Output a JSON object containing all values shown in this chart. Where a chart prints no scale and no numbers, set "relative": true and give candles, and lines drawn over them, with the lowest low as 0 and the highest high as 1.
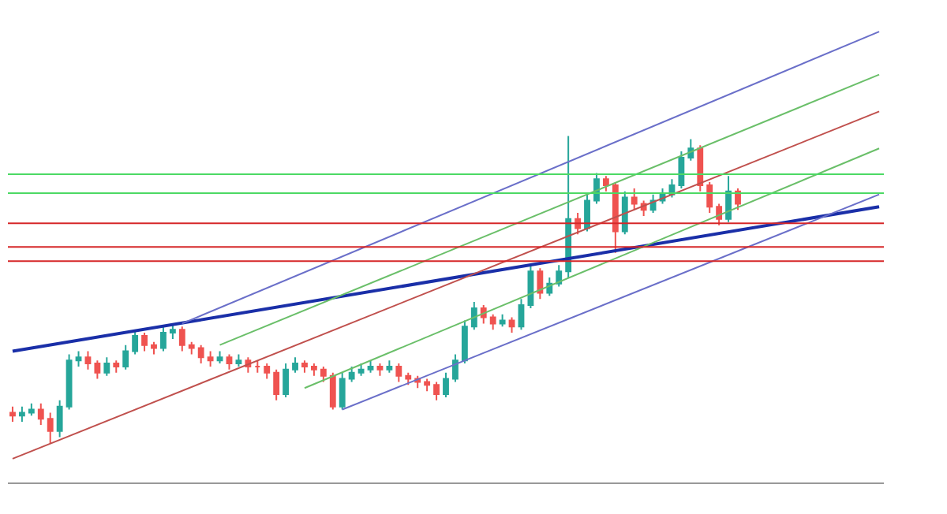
{
  "chart_data": {
    "type": "candlestick",
    "relative": true,
    "grid": false,
    "categories": [
      null,
      null,
      null,
      null,
      null,
      null,
      null,
      null,
      null,
      null,
      null,
      null,
      null,
      null,
      null,
      null,
      null,
      null,
      null,
      null,
      null,
      null,
      null,
      null,
      null,
      null,
      null,
      null,
      null,
      null,
      null,
      null,
      null,
      null,
      null,
      null,
      null,
      null,
      null,
      null,
      null,
      null,
      null,
      null,
      null,
      null,
      null,
      null,
      null,
      null,
      null,
      null,
      null,
      null,
      null,
      null,
      null,
      null,
      null,
      null,
      null,
      null,
      null,
      null,
      null,
      null,
      null,
      null,
      null,
      null,
      null,
      null,
      null,
      null,
      null,
      null,
      null,
      null,
      null,
      null,
      null,
      null,
      null,
      null,
      null,
      null,
      null,
      null,
      null,
      null,
      null,
      null,
      null
    ],
    "ohlc": [
      [
        0.1,
        0.12,
        0.07,
        0.09
      ],
      [
        0.09,
        0.12,
        0.07,
        0.1
      ],
      [
        0.1,
        0.13,
        0.09,
        0.11
      ],
      [
        0.11,
        0.13,
        0.06,
        0.08
      ],
      [
        0.08,
        0.1,
        0.0,
        0.04
      ],
      [
        0.04,
        0.14,
        0.02,
        0.12
      ],
      [
        0.12,
        0.29,
        0.11,
        0.27
      ],
      [
        0.27,
        0.3,
        0.25,
        0.28
      ],
      [
        0.28,
        0.3,
        0.24,
        0.26
      ],
      [
        0.26,
        0.27,
        0.21,
        0.23
      ],
      [
        0.23,
        0.28,
        0.22,
        0.26
      ],
      [
        0.26,
        0.27,
        0.23,
        0.25
      ],
      [
        0.25,
        0.32,
        0.24,
        0.3
      ],
      [
        0.3,
        0.37,
        0.29,
        0.35
      ],
      [
        0.35,
        0.36,
        0.3,
        0.32
      ],
      [
        0.32,
        0.33,
        0.29,
        0.31
      ],
      [
        0.31,
        0.38,
        0.3,
        0.36
      ],
      [
        0.36,
        0.39,
        0.34,
        0.37
      ],
      [
        0.37,
        0.38,
        0.3,
        0.32
      ],
      [
        0.32,
        0.33,
        0.29,
        0.31
      ],
      [
        0.31,
        0.32,
        0.26,
        0.28
      ],
      [
        0.28,
        0.3,
        0.25,
        0.27
      ],
      [
        0.27,
        0.3,
        0.26,
        0.28
      ],
      [
        0.28,
        0.29,
        0.24,
        0.26
      ],
      [
        0.26,
        0.29,
        0.25,
        0.27
      ],
      [
        0.27,
        0.28,
        0.23,
        0.25
      ],
      [
        0.25,
        0.27,
        0.23,
        0.25
      ],
      [
        0.25,
        0.26,
        0.21,
        0.23
      ],
      [
        0.23,
        0.24,
        0.14,
        0.16
      ],
      [
        0.16,
        0.26,
        0.15,
        0.24
      ],
      [
        0.24,
        0.28,
        0.23,
        0.26
      ],
      [
        0.26,
        0.27,
        0.23,
        0.25
      ],
      [
        0.25,
        0.26,
        0.22,
        0.24
      ],
      [
        0.24,
        0.25,
        0.2,
        0.22
      ],
      [
        0.22,
        0.23,
        0.11,
        0.12
      ],
      [
        0.12,
        0.23,
        0.11,
        0.21
      ],
      [
        0.21,
        0.25,
        0.2,
        0.23
      ],
      [
        0.23,
        0.26,
        0.22,
        0.24
      ],
      [
        0.24,
        0.27,
        0.23,
        0.25
      ],
      [
        0.25,
        0.26,
        0.22,
        0.24
      ],
      [
        0.24,
        0.27,
        0.23,
        0.25
      ],
      [
        0.25,
        0.26,
        0.2,
        0.22
      ],
      [
        0.22,
        0.23,
        0.19,
        0.21
      ],
      [
        0.21,
        0.22,
        0.18,
        0.2
      ],
      [
        0.2,
        0.21,
        0.17,
        0.19
      ],
      [
        0.19,
        0.2,
        0.14,
        0.16
      ],
      [
        0.16,
        0.23,
        0.15,
        0.21
      ],
      [
        0.21,
        0.29,
        0.2,
        0.27
      ],
      [
        0.27,
        0.4,
        0.26,
        0.38
      ],
      [
        0.38,
        0.46,
        0.37,
        0.44
      ],
      [
        0.44,
        0.45,
        0.39,
        0.41
      ],
      [
        0.41,
        0.42,
        0.37,
        0.39
      ],
      [
        0.39,
        0.42,
        0.38,
        0.4
      ],
      [
        0.4,
        0.41,
        0.36,
        0.38
      ],
      [
        0.38,
        0.47,
        0.37,
        0.45
      ],
      [
        0.45,
        0.58,
        0.44,
        0.56
      ],
      [
        0.56,
        0.57,
        0.47,
        0.49
      ],
      [
        0.49,
        0.54,
        0.48,
        0.52
      ],
      [
        0.52,
        0.58,
        0.51,
        0.56
      ],
      [
        0.56,
        1.0,
        0.54,
        0.73
      ],
      [
        0.73,
        0.75,
        0.68,
        0.7
      ],
      [
        0.7,
        0.81,
        0.69,
        0.79
      ],
      [
        0.79,
        0.88,
        0.78,
        0.86
      ],
      [
        0.86,
        0.87,
        0.82,
        0.84
      ],
      [
        0.84,
        0.85,
        0.62,
        0.69
      ],
      [
        0.69,
        0.82,
        0.68,
        0.8
      ],
      [
        0.8,
        0.83,
        0.76,
        0.78
      ],
      [
        0.78,
        0.79,
        0.74,
        0.76
      ],
      [
        0.76,
        0.81,
        0.75,
        0.79
      ],
      [
        0.79,
        0.83,
        0.78,
        0.81
      ],
      [
        0.81,
        0.86,
        0.8,
        0.84
      ],
      [
        0.84,
        0.95,
        0.83,
        0.93
      ],
      [
        0.93,
        0.99,
        0.92,
        0.96
      ],
      [
        0.96,
        0.97,
        0.82,
        0.84
      ],
      [
        0.84,
        0.85,
        0.75,
        0.77
      ],
      [
        0.77,
        0.78,
        0.71,
        0.73
      ],
      [
        0.73,
        0.87,
        0.72,
        0.82
      ],
      [
        0.82,
        0.83,
        0.76,
        0.78
      ],
      null,
      null,
      null,
      null,
      null,
      null,
      null,
      null,
      null,
      null,
      null,
      null,
      null,
      null,
      null
    ],
    "series": [
      {
        "type": "line",
        "color": "#1a2fa8",
        "values": [
          0.3,
          null,
          null,
          null,
          null,
          null,
          null,
          null,
          null,
          null,
          null,
          null,
          null,
          null,
          null,
          null,
          null,
          null,
          null,
          null,
          null,
          null,
          null,
          null,
          null,
          null,
          null,
          null,
          null,
          null,
          null,
          null,
          null,
          null,
          null,
          null,
          null,
          null,
          null,
          null,
          null,
          null,
          null,
          null,
          null,
          null,
          null,
          null,
          null,
          null,
          null,
          null,
          null,
          null,
          null,
          null,
          null,
          null,
          null,
          null,
          null,
          null,
          null,
          null,
          null,
          null,
          null,
          null,
          null,
          null,
          null,
          null,
          null,
          null,
          null,
          null,
          null,
          null,
          null,
          null,
          null,
          null,
          null,
          null,
          null,
          null,
          null,
          null,
          null,
          null,
          null,
          null,
          0.77
        ]
      },
      {
        "type": "line",
        "color": "#c0504d",
        "values": [
          -0.05,
          null,
          null,
          null,
          null,
          null,
          null,
          null,
          null,
          null,
          null,
          null,
          null,
          null,
          null,
          null,
          null,
          null,
          null,
          null,
          null,
          null,
          null,
          null,
          null,
          null,
          null,
          null,
          null,
          null,
          null,
          null,
          null,
          null,
          null,
          null,
          null,
          null,
          null,
          null,
          null,
          null,
          null,
          null,
          null,
          null,
          null,
          null,
          null,
          null,
          null,
          null,
          null,
          null,
          null,
          null,
          null,
          null,
          null,
          null,
          null,
          null,
          null,
          null,
          null,
          null,
          null,
          null,
          null,
          null,
          null,
          null,
          null,
          null,
          null,
          null,
          null,
          null,
          null,
          null,
          null,
          null,
          null,
          null,
          null,
          null,
          null,
          null,
          null,
          null,
          null,
          null,
          1.08
        ]
      },
      {
        "type": "line",
        "color": "#6a6fc9",
        "values": [
          null,
          null,
          null,
          null,
          null,
          null,
          null,
          null,
          null,
          null,
          null,
          null,
          null,
          null,
          null,
          null,
          null,
          null,
          0.39,
          null,
          null,
          null,
          null,
          null,
          null,
          null,
          null,
          null,
          null,
          null,
          null,
          null,
          null,
          null,
          null,
          null,
          null,
          null,
          null,
          null,
          null,
          null,
          null,
          null,
          null,
          null,
          null,
          null,
          null,
          null,
          null,
          null,
          null,
          null,
          null,
          null,
          null,
          null,
          null,
          null,
          null,
          null,
          null,
          null,
          null,
          null,
          null,
          null,
          null,
          null,
          null,
          null,
          null,
          null,
          null,
          null,
          null,
          null,
          null,
          null,
          null,
          null,
          null,
          null,
          null,
          null,
          null,
          null,
          null,
          null,
          null,
          null,
          1.34
        ]
      },
      {
        "type": "line",
        "color": "#6abf69",
        "values": [
          null,
          null,
          null,
          null,
          null,
          null,
          null,
          null,
          null,
          null,
          null,
          null,
          null,
          null,
          null,
          null,
          null,
          null,
          null,
          null,
          null,
          null,
          0.32,
          null,
          null,
          null,
          null,
          null,
          null,
          null,
          null,
          null,
          null,
          null,
          null,
          null,
          null,
          null,
          null,
          null,
          null,
          null,
          null,
          null,
          null,
          null,
          null,
          null,
          null,
          null,
          null,
          null,
          null,
          null,
          null,
          null,
          null,
          null,
          null,
          null,
          null,
          null,
          null,
          null,
          null,
          null,
          null,
          null,
          null,
          null,
          null,
          null,
          null,
          null,
          null,
          null,
          null,
          null,
          null,
          null,
          null,
          null,
          null,
          null,
          null,
          null,
          null,
          null,
          null,
          null,
          null,
          null,
          1.2
        ]
      },
      {
        "type": "line",
        "color": "#6abf69",
        "values": [
          null,
          null,
          null,
          null,
          null,
          null,
          null,
          null,
          null,
          null,
          null,
          null,
          null,
          null,
          null,
          null,
          null,
          null,
          null,
          null,
          null,
          null,
          null,
          null,
          null,
          null,
          null,
          null,
          null,
          null,
          null,
          0.18,
          null,
          null,
          null,
          null,
          null,
          null,
          null,
          null,
          null,
          null,
          null,
          null,
          null,
          null,
          null,
          null,
          null,
          null,
          null,
          null,
          null,
          null,
          null,
          null,
          null,
          null,
          null,
          null,
          null,
          null,
          null,
          null,
          null,
          null,
          null,
          null,
          null,
          null,
          null,
          null,
          null,
          null,
          null,
          null,
          null,
          null,
          null,
          null,
          null,
          null,
          null,
          null,
          null,
          null,
          null,
          null,
          null,
          null,
          null,
          null,
          0.96
        ]
      },
      {
        "type": "line",
        "color": "#6a6fc9",
        "values": [
          null,
          null,
          null,
          null,
          null,
          null,
          null,
          null,
          null,
          null,
          null,
          null,
          null,
          null,
          null,
          null,
          null,
          null,
          null,
          null,
          null,
          null,
          null,
          null,
          null,
          null,
          null,
          null,
          null,
          null,
          null,
          null,
          null,
          null,
          null,
          0.11,
          null,
          null,
          null,
          null,
          null,
          null,
          null,
          null,
          null,
          null,
          null,
          null,
          null,
          null,
          null,
          null,
          null,
          null,
          null,
          null,
          null,
          null,
          null,
          null,
          null,
          null,
          null,
          null,
          null,
          null,
          null,
          null,
          null,
          null,
          null,
          null,
          null,
          null,
          null,
          null,
          null,
          null,
          null,
          null,
          null,
          null,
          null,
          null,
          null,
          null,
          null,
          null,
          null,
          null,
          null,
          null,
          0.81
        ]
      }
    ],
    "ref_lines": [
      {
        "axis": "y",
        "value": 0.876,
        "color": "#4cd964"
      },
      {
        "axis": "y",
        "value": 0.814,
        "color": "#4cd964"
      },
      {
        "axis": "y",
        "value": 0.716,
        "color": "#d62728"
      },
      {
        "axis": "y",
        "value": 0.639,
        "color": "#d62728"
      },
      {
        "axis": "y",
        "value": 0.593,
        "color": "#d62728"
      }
    ]
  }
}
